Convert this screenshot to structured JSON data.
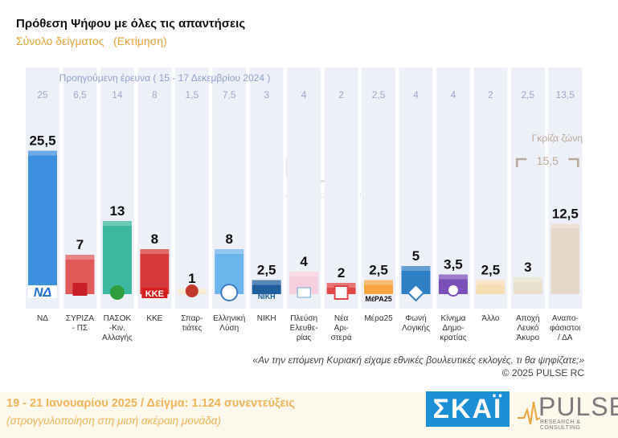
{
  "title": "Πρόθεση Ψήφου με όλες τις απαντήσεις",
  "subtitle": "Σύνολο δείγματος   (Εκτίμηση)",
  "previous_label": "Προηγούμενη έρευνα ( 15 - 17 Δεκεμβρίου 2024 )",
  "grey_zone": {
    "label": "Γκρίζα ζώνη",
    "value": "15,5"
  },
  "question": "«Αν την επόμενη Κυριακή είχαμε εθνικές βουλευτικές εκλογές, τι θα ψηφίζατε;»",
  "copyright": "©  2025  PULSE RC",
  "footer": {
    "line1": "19 - 21 Ιανουαρίου 2025  /  Δείγμα:  1.124 συνεντεύξεις",
    "line2": "(στρογγυλοποίηση στη μισή ακέραιη μονάδα)"
  },
  "logos": {
    "broadcaster": "ΣΚΑΪ",
    "pollster": "PULSE",
    "pollster_tag": "RESEARCH & CONSULTING",
    "party_logo_ND": "ΝΔ",
    "party_logo_KKE": "ΚΚΕ",
    "party_logo_NIKH": "ΝΙΚΗ",
    "party_logo_MERA25": "ΜέΡΑ25"
  },
  "colors": {
    "ND": "#3d8fe0",
    "SYRIZA": "#e05a5a",
    "PASOK": "#3cb8a0",
    "KKE": "#d63a3a",
    "SPARTIATES": "#f5e6c8",
    "EL": "#6cb4ec",
    "NIKH": "#1f5f9e",
    "PLEFSI": "#f5d0dc",
    "NEA_ARISTERA": "#e04848",
    "MERA25": "#f5a640",
    "FONI": "#2f7fc4",
    "KINIMA": "#7a4fb8",
    "ALLO": "#f7ddb2",
    "APOXI": "#e8e0cc",
    "ANAPOF": "#e6d8c8",
    "column_bg": "#eef0f8"
  },
  "chart_data": {
    "type": "bar",
    "title": "Πρόθεση Ψήφου με όλες τις απαντήσεις",
    "categories": [
      "ΝΔ",
      "ΣΥΡΙΖΑ - ΠΣ",
      "ΠΑΣΟΚ -Κιν. Αλλαγής",
      "ΚΚΕ",
      "Σπαρ- τιάτες",
      "Ελληνική Λύση",
      "ΝΙΚΗ",
      "Πλεύση Ελευθε- ρίας",
      "Νέα Αρι- στερά",
      "Μέρα25",
      "Φωνή Λογικής",
      "Κίνημα Δημο- κρατίας",
      "Άλλο",
      "Αποχή Λευκό Άκυρο",
      "Αναπο- φάσιστοι / ΔΑ"
    ],
    "category_lines": [
      [
        "ΝΔ"
      ],
      [
        "ΣΥΡΙΖΑ",
        "- ΠΣ"
      ],
      [
        "ΠΑΣΟΚ",
        "-Κιν.",
        "Αλλαγής"
      ],
      [
        "ΚΚΕ"
      ],
      [
        "Σπαρ-",
        "τιάτες"
      ],
      [
        "Ελληνική",
        "Λύση"
      ],
      [
        "ΝΙΚΗ"
      ],
      [
        "Πλεύση",
        "Ελευθε-",
        "ρίας"
      ],
      [
        "Νέα",
        "Αρι-",
        "στερά"
      ],
      [
        "Μέρα25"
      ],
      [
        "Φωνή",
        "Λογικής"
      ],
      [
        "Κίνημα",
        "Δημο-",
        "κρατίας"
      ],
      [
        "Άλλο"
      ],
      [
        "Αποχή",
        "Λευκό",
        "Άκυρο"
      ],
      [
        "Αναπο-",
        "φάσιστοι",
        "/ ΔΑ"
      ]
    ],
    "series": [
      {
        "name": "Εκτίμηση",
        "values": [
          25.5,
          7,
          13,
          8,
          1,
          8,
          2.5,
          4,
          2,
          2.5,
          5,
          3.5,
          2.5,
          3,
          12.5
        ],
        "labels": [
          "25,5",
          "7",
          "13",
          "8",
          "1",
          "8",
          "2,5",
          "4",
          "2",
          "2,5",
          "5",
          "3,5",
          "2,5",
          "3",
          "12,5"
        ]
      },
      {
        "name": "Προηγούμενη έρευνα ( 15 - 17 Δεκεμβρίου 2024 )",
        "values": [
          25,
          6.5,
          14,
          8,
          1.5,
          7.5,
          3,
          4,
          2,
          2.5,
          4,
          4,
          2,
          2.5,
          13.5
        ],
        "labels": [
          "25",
          "6,5",
          "14",
          "8",
          "1,5",
          "7,5",
          "3",
          "4",
          "2",
          "2,5",
          "4",
          "4",
          "2",
          "2,5",
          "13,5"
        ]
      }
    ],
    "ylim": [
      0,
      30
    ],
    "grid": false
  }
}
